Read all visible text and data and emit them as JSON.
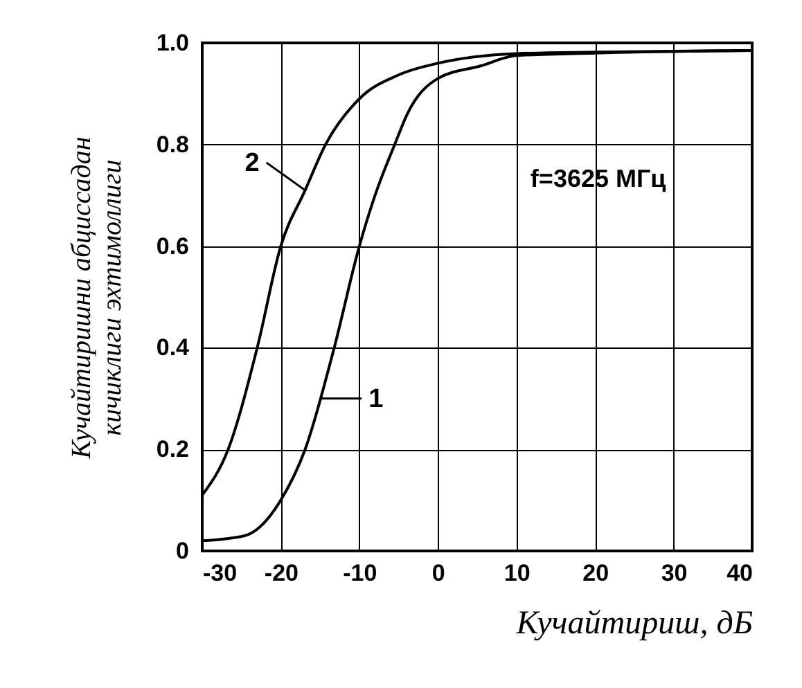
{
  "chart_data": {
    "type": "line",
    "xlabel": "Кучайтириш, дБ",
    "ylabel": "Кучайтиришни абциссадан\nкичиклиги эхтимоллиги",
    "xlim": [
      -30,
      40
    ],
    "xticks": [
      -30,
      -20,
      -10,
      0,
      10,
      20,
      30,
      40
    ],
    "ylim": [
      0,
      1.0
    ],
    "yticks": [
      0,
      {
        "value": 0.2,
        "label": "0.2"
      },
      {
        "value": 0.4,
        "label": "0.4"
      },
      {
        "value": 0.6,
        "label": "0.6"
      },
      {
        "value": 0.8,
        "label": "0.8"
      },
      {
        "value": 1.0,
        "label": "1.0"
      }
    ],
    "grid": true,
    "marker": "none",
    "line_style": "solid",
    "series": [
      {
        "color": "#000000",
        "x": [
          -30,
          -24.6,
          -20,
          -16.9,
          -13.2,
          -10,
          -8,
          -5.5,
          -3.9,
          0,
          5.5,
          10,
          20,
          40
        ],
        "values": [
          0.02,
          0.03,
          0.1,
          0.2,
          0.4,
          0.6,
          0.7,
          0.8,
          0.86,
          0.93,
          0.955,
          0.975,
          0.98,
          0.985
        ]
      },
      {
        "color": "#000000",
        "x": [
          -30,
          -26.7,
          -23,
          -20,
          -16.9,
          -14.3,
          -10,
          -5,
          0,
          10,
          20,
          40
        ],
        "values": [
          0.11,
          0.2,
          0.4,
          0.6,
          0.71,
          0.8,
          0.89,
          0.937,
          0.96,
          0.979,
          0.982,
          0.985
        ]
      }
    ],
    "annotations": [
      {
        "text": "1",
        "x": -15,
        "y": 0.3
      },
      {
        "text": "2",
        "x": -16.9,
        "y": 0.71
      },
      "f=3625 МГц"
    ]
  }
}
